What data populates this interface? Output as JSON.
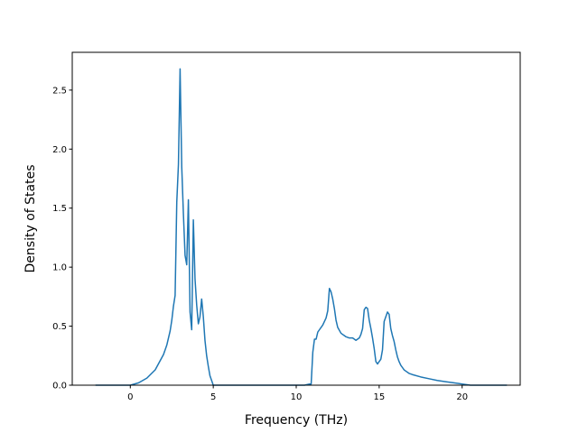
{
  "chart_data": {
    "type": "line",
    "title": "",
    "xlabel": "Frequency (THz)",
    "ylabel": "Density of States",
    "xlim": [
      -3.5,
      23.5
    ],
    "ylim": [
      0,
      2.82
    ],
    "xticks": [
      0,
      5,
      10,
      15,
      20
    ],
    "xtick_labels": [
      "0",
      "5",
      "10",
      "15",
      "20"
    ],
    "yticks": [
      0.0,
      0.5,
      1.0,
      1.5,
      2.0,
      2.5
    ],
    "ytick_labels": [
      "0.0",
      "0.5",
      "1.0",
      "1.5",
      "2.0",
      "2.5"
    ],
    "grid": false,
    "line_color": "#1f77b4",
    "series": [
      {
        "x": [
          -2.1,
          -1.0,
          0.0,
          0.5,
          1.0,
          1.5,
          2.0,
          2.2,
          2.4,
          2.5,
          2.6,
          2.7,
          2.8,
          2.9,
          3.0,
          3.1,
          3.2,
          3.3,
          3.4,
          3.5,
          3.6,
          3.7,
          3.8,
          3.9,
          4.0,
          4.1,
          4.2,
          4.3,
          4.4,
          4.5,
          4.6,
          4.7,
          4.8,
          5.0,
          5.2,
          5.5,
          7.0,
          9.0,
          10.5,
          10.8,
          10.9,
          11.0,
          11.1,
          11.2,
          11.3,
          11.4,
          11.6,
          11.8,
          11.9,
          12.0,
          12.1,
          12.2,
          12.3,
          12.4,
          12.5,
          12.7,
          13.0,
          13.2,
          13.4,
          13.6,
          13.8,
          13.9,
          14.0,
          14.1,
          14.2,
          14.3,
          14.4,
          14.5,
          14.6,
          14.7,
          14.8,
          14.9,
          15.0,
          15.1,
          15.2,
          15.3,
          15.4,
          15.5,
          15.6,
          15.7,
          15.8,
          15.9,
          16.0,
          16.1,
          16.2,
          16.3,
          16.4,
          16.5,
          16.6,
          16.8,
          17.0,
          17.5,
          18.0,
          18.5,
          19.0,
          19.5,
          20.0,
          20.5,
          21.0,
          22.0,
          22.7
        ],
        "y": [
          0.0,
          0.0,
          0.0,
          0.02,
          0.06,
          0.13,
          0.26,
          0.34,
          0.46,
          0.55,
          0.67,
          0.76,
          1.55,
          1.87,
          2.68,
          1.85,
          1.45,
          1.1,
          1.02,
          1.57,
          0.62,
          0.47,
          1.4,
          0.9,
          0.68,
          0.52,
          0.58,
          0.73,
          0.58,
          0.38,
          0.25,
          0.16,
          0.08,
          0.0,
          0.0,
          0.0,
          0.0,
          0.0,
          0.0,
          0.01,
          0.01,
          0.28,
          0.39,
          0.39,
          0.45,
          0.47,
          0.51,
          0.57,
          0.63,
          0.82,
          0.79,
          0.73,
          0.65,
          0.55,
          0.49,
          0.44,
          0.41,
          0.4,
          0.4,
          0.38,
          0.4,
          0.43,
          0.48,
          0.64,
          0.66,
          0.65,
          0.55,
          0.48,
          0.4,
          0.31,
          0.2,
          0.18,
          0.2,
          0.22,
          0.3,
          0.54,
          0.58,
          0.62,
          0.6,
          0.48,
          0.42,
          0.37,
          0.3,
          0.24,
          0.2,
          0.17,
          0.15,
          0.13,
          0.12,
          0.1,
          0.09,
          0.07,
          0.055,
          0.04,
          0.03,
          0.02,
          0.01,
          0.0,
          0.0,
          0.0,
          0.0
        ]
      }
    ]
  }
}
